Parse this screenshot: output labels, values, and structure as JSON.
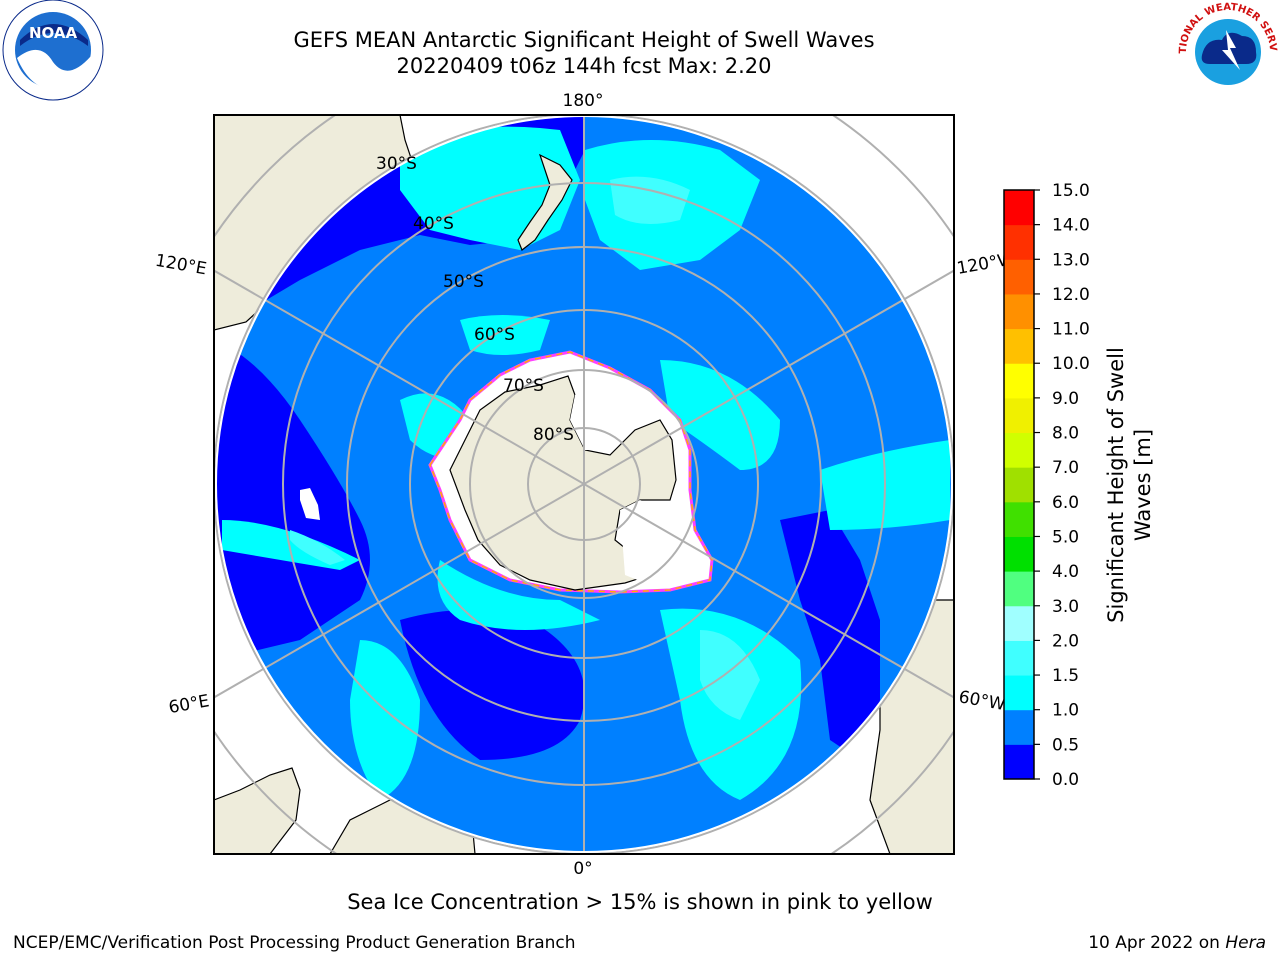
{
  "title": {
    "line1": "GEFS MEAN Antarctic Significant Height of Swell Waves",
    "line2": "20220409 t06z 144h fcst   Max: 2.20"
  },
  "map": {
    "projection": "south polar stereographic",
    "longitude_labels": {
      "top": "180°",
      "bottom": "0°",
      "upper_left": "120°E",
      "upper_right": "120°W",
      "lower_left": "60°E",
      "lower_right": "60°W"
    },
    "latitude_labels": [
      "30°S",
      "40°S",
      "50°S",
      "60°S",
      "70°S",
      "80°S"
    ],
    "colors": {
      "land": "#eeecdb",
      "ocean_00_05": "#0000ff",
      "ocean_05_10": "#0080ff",
      "ocean_10_15": "#00ffff",
      "ocean_15_20": "#40ffff",
      "sea_ice": "#ffffff",
      "gridline": "#b0b0b0"
    }
  },
  "colorbar": {
    "label_line1": "Significant Height of Swell",
    "label_line2": "Waves [m]",
    "ticks": [
      "0.0",
      "0.5",
      "1.0",
      "1.5",
      "2.0",
      "3.0",
      "4.0",
      "5.0",
      "6.0",
      "7.0",
      "8.0",
      "9.0",
      "10.0",
      "11.0",
      "12.0",
      "13.0",
      "14.0",
      "15.0"
    ],
    "colors": [
      "#0000ff",
      "#0080ff",
      "#00ffff",
      "#40ffff",
      "#a0ffff",
      "#50ff80",
      "#00e000",
      "#40e000",
      "#a0e000",
      "#d0ff00",
      "#f0f000",
      "#ffff00",
      "#ffc000",
      "#ff9000",
      "#ff6000",
      "#ff3000",
      "#ff0000"
    ]
  },
  "logos": {
    "left": "NOAA",
    "right_text": "NATIONAL WEATHER SERVICE"
  },
  "note": "Sea Ice Concentration > 15% is shown in pink to yellow",
  "footer": {
    "left": "NCEP/EMC/Verification Post Processing Product Generation Branch",
    "right_prefix": "10 Apr 2022 on ",
    "right_host": "Hera"
  }
}
